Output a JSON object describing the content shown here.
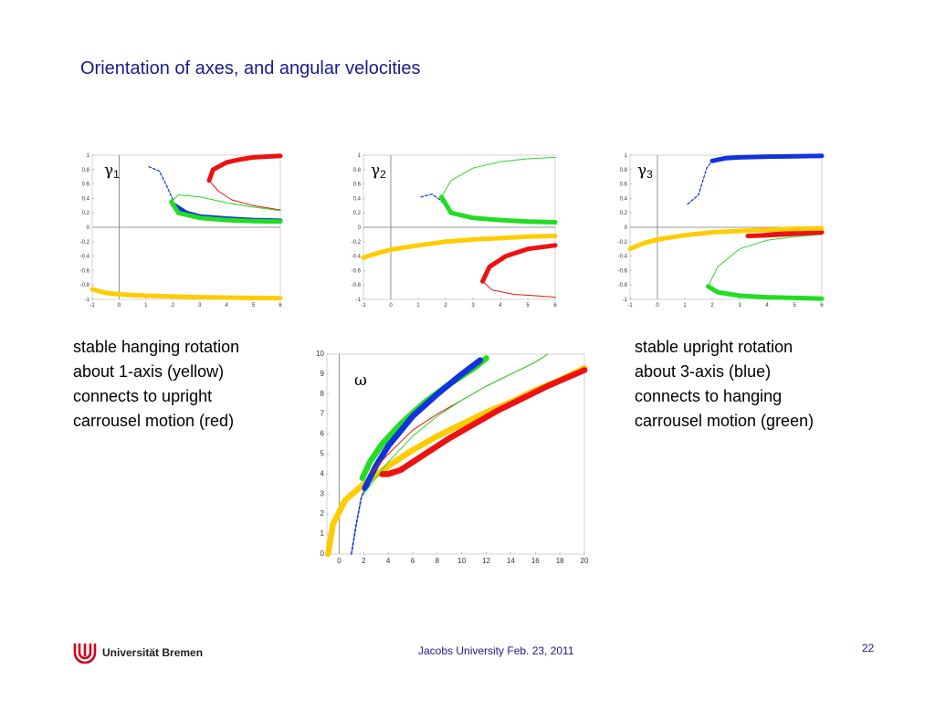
{
  "slide": {
    "title": "Orientation of axes, and angular velocities",
    "caption_left": [
      "stable hanging rotation",
      "about 1-axis (yellow)",
      "connects to upright",
      "carrousel motion (red)"
    ],
    "caption_right": [
      "stable upright rotation",
      "about 3-axis (blue)",
      "connects to hanging",
      "carrousel motion (green)"
    ],
    "footer": "Jacobs University Feb. 23, 2011",
    "page_number": "22",
    "logo_text": "Universität Bremen"
  },
  "colors": {
    "red": "#ee1111",
    "blue": "#1133dd",
    "green": "#22dd22",
    "yellow": "#ffcc00",
    "title": "#1a1a8c"
  },
  "chart_data": [
    {
      "type": "line",
      "label": "γ1",
      "label_symbol": "γ",
      "label_sub": "1",
      "xlim": [
        -1,
        6
      ],
      "ylim": [
        -1,
        1
      ],
      "xticks": [
        -1,
        0,
        1,
        2,
        3,
        4,
        5,
        6
      ],
      "yticks": [
        1,
        0.8,
        0.6,
        0.4,
        0.2,
        0,
        -0.2,
        -0.4,
        -0.6,
        -0.8,
        -1
      ],
      "series": [
        {
          "color": "red",
          "style": "thick",
          "points": [
            [
              3.35,
              0.65
            ],
            [
              3.5,
              0.8
            ],
            [
              4,
              0.9
            ],
            [
              4.5,
              0.94
            ],
            [
              5,
              0.97
            ],
            [
              6,
              0.99
            ]
          ]
        },
        {
          "color": "red",
          "style": "thin",
          "points": [
            [
              3.35,
              0.65
            ],
            [
              3.7,
              0.5
            ],
            [
              4.2,
              0.38
            ],
            [
              5,
              0.3
            ],
            [
              6,
              0.24
            ]
          ]
        },
        {
          "color": "blue",
          "style": "dashed",
          "points": [
            [
              1.1,
              0.84
            ],
            [
              1.5,
              0.78
            ],
            [
              1.8,
              0.55
            ],
            [
              2,
              0.38
            ]
          ]
        },
        {
          "color": "blue",
          "style": "thick",
          "points": [
            [
              2,
              0.32
            ],
            [
              2.5,
              0.2
            ],
            [
              3,
              0.15
            ],
            [
              4,
              0.12
            ],
            [
              5,
              0.1
            ],
            [
              6,
              0.09
            ]
          ]
        },
        {
          "color": "green",
          "style": "thick",
          "points": [
            [
              1.95,
              0.35
            ],
            [
              2.2,
              0.2
            ],
            [
              3,
              0.13
            ],
            [
              4,
              0.1
            ],
            [
              5,
              0.085
            ],
            [
              6,
              0.08
            ]
          ]
        },
        {
          "color": "green",
          "style": "thin",
          "points": [
            [
              1.95,
              0.35
            ],
            [
              2.2,
              0.45
            ],
            [
              3,
              0.42
            ],
            [
              4,
              0.34
            ],
            [
              5,
              0.28
            ],
            [
              6,
              0.23
            ]
          ]
        },
        {
          "color": "yellow",
          "style": "thick",
          "points": [
            [
              -1,
              -0.86
            ],
            [
              -0.5,
              -0.91
            ],
            [
              0,
              -0.93
            ],
            [
              1,
              -0.95
            ],
            [
              2,
              -0.96
            ],
            [
              3,
              -0.97
            ],
            [
              4,
              -0.975
            ],
            [
              5,
              -0.98
            ],
            [
              6,
              -0.985
            ]
          ]
        }
      ]
    },
    {
      "type": "line",
      "label": "γ2",
      "label_symbol": "γ",
      "label_sub": "2",
      "xlim": [
        -1,
        6
      ],
      "ylim": [
        -1,
        1
      ],
      "xticks": [
        -1,
        0,
        1,
        2,
        3,
        4,
        5,
        6
      ],
      "yticks": [
        1,
        0.8,
        0.6,
        0.4,
        0.2,
        0,
        -0.2,
        -0.4,
        -0.6,
        -0.8,
        -1
      ],
      "series": [
        {
          "color": "blue",
          "style": "dashed",
          "points": [
            [
              1.1,
              0.42
            ],
            [
              1.5,
              0.46
            ],
            [
              1.8,
              0.38
            ],
            [
              2,
              0.3
            ]
          ]
        },
        {
          "color": "green",
          "style": "thin",
          "points": [
            [
              1.85,
              0.42
            ],
            [
              2.2,
              0.65
            ],
            [
              3,
              0.82
            ],
            [
              4,
              0.91
            ],
            [
              5,
              0.95
            ],
            [
              6,
              0.97
            ]
          ]
        },
        {
          "color": "green",
          "style": "thick",
          "points": [
            [
              1.85,
              0.42
            ],
            [
              2.2,
              0.2
            ],
            [
              3,
              0.13
            ],
            [
              4,
              0.1
            ],
            [
              5,
              0.08
            ],
            [
              6,
              0.07
            ]
          ]
        },
        {
          "color": "red",
          "style": "thick",
          "points": [
            [
              3.35,
              -0.75
            ],
            [
              3.6,
              -0.55
            ],
            [
              4.2,
              -0.4
            ],
            [
              5,
              -0.3
            ],
            [
              6,
              -0.25
            ]
          ]
        },
        {
          "color": "red",
          "style": "thin",
          "points": [
            [
              3.35,
              -0.75
            ],
            [
              3.7,
              -0.87
            ],
            [
              4.5,
              -0.93
            ],
            [
              5.3,
              -0.95
            ],
            [
              6,
              -0.97
            ]
          ]
        },
        {
          "color": "yellow",
          "style": "thick",
          "points": [
            [
              -1,
              -0.42
            ],
            [
              -0.5,
              -0.36
            ],
            [
              0,
              -0.31
            ],
            [
              1,
              -0.25
            ],
            [
              2,
              -0.2
            ],
            [
              3,
              -0.17
            ],
            [
              4,
              -0.15
            ],
            [
              5,
              -0.13
            ],
            [
              6,
              -0.12
            ]
          ]
        }
      ]
    },
    {
      "type": "line",
      "label": "γ3",
      "label_symbol": "γ",
      "label_sub": "3",
      "xlim": [
        -1,
        6
      ],
      "ylim": [
        -1,
        1
      ],
      "xticks": [
        -1,
        0,
        1,
        2,
        3,
        4,
        5,
        6
      ],
      "yticks": [
        1,
        0.8,
        0.6,
        0.4,
        0.2,
        0,
        -0.2,
        -0.4,
        -0.6,
        -0.8,
        -1
      ],
      "series": [
        {
          "color": "blue",
          "style": "dashed",
          "points": [
            [
              1.1,
              0.32
            ],
            [
              1.5,
              0.45
            ],
            [
              1.8,
              0.82
            ],
            [
              2,
              0.92
            ]
          ]
        },
        {
          "color": "blue",
          "style": "thick",
          "points": [
            [
              2,
              0.92
            ],
            [
              2.5,
              0.96
            ],
            [
              3,
              0.97
            ],
            [
              4,
              0.98
            ],
            [
              5,
              0.985
            ],
            [
              6,
              0.99
            ]
          ]
        },
        {
          "color": "green",
          "style": "thin",
          "points": [
            [
              1.85,
              -0.82
            ],
            [
              2.2,
              -0.55
            ],
            [
              3,
              -0.3
            ],
            [
              4,
              -0.18
            ],
            [
              5,
              -0.13
            ],
            [
              6,
              -0.1
            ]
          ]
        },
        {
          "color": "green",
          "style": "thick",
          "points": [
            [
              1.85,
              -0.82
            ],
            [
              2.2,
              -0.9
            ],
            [
              3,
              -0.95
            ],
            [
              4,
              -0.97
            ],
            [
              5,
              -0.98
            ],
            [
              6,
              -0.99
            ]
          ]
        },
        {
          "color": "red",
          "style": "thick",
          "points": [
            [
              3.3,
              -0.12
            ],
            [
              4,
              -0.11
            ],
            [
              5,
              -0.09
            ],
            [
              6,
              -0.07
            ]
          ]
        },
        {
          "color": "red",
          "style": "thin",
          "points": [
            [
              3.3,
              -0.12
            ],
            [
              4,
              -0.08
            ],
            [
              5,
              -0.05
            ],
            [
              6,
              -0.03
            ]
          ]
        },
        {
          "color": "yellow",
          "style": "thick",
          "points": [
            [
              -1,
              -0.3
            ],
            [
              -0.5,
              -0.22
            ],
            [
              0,
              -0.17
            ],
            [
              1,
              -0.11
            ],
            [
              2,
              -0.07
            ],
            [
              3,
              -0.05
            ],
            [
              4,
              -0.035
            ],
            [
              5,
              -0.02
            ],
            [
              6,
              -0.015
            ]
          ]
        }
      ]
    },
    {
      "type": "line",
      "label": "ω",
      "label_symbol": "ω",
      "label_sub": "",
      "xlim": [
        -1,
        20
      ],
      "ylim": [
        0,
        10
      ],
      "xticks": [
        0,
        2,
        4,
        6,
        8,
        10,
        12,
        14,
        16,
        18,
        20
      ],
      "yticks": [
        10,
        9,
        8,
        7,
        6,
        5,
        4,
        3,
        2,
        1,
        0
      ],
      "series": [
        {
          "color": "yellow",
          "style": "thick",
          "points": [
            [
              -0.9,
              0
            ],
            [
              -0.5,
              1.5
            ],
            [
              0.5,
              2.7
            ],
            [
              2,
              3.5
            ],
            [
              4,
              4.4
            ],
            [
              6,
              5.2
            ],
            [
              8,
              5.9
            ],
            [
              10,
              6.5
            ],
            [
              12,
              7.1
            ],
            [
              14,
              7.6
            ],
            [
              16,
              8.2
            ],
            [
              18,
              8.7
            ],
            [
              20,
              9.3
            ]
          ]
        },
        {
          "color": "green",
          "style": "thick",
          "points": [
            [
              1.9,
              3.8
            ],
            [
              2.5,
              4.6
            ],
            [
              3.5,
              5.5
            ],
            [
              5,
              6.5
            ],
            [
              7,
              7.6
            ],
            [
              9,
              8.5
            ],
            [
              11,
              9.3
            ],
            [
              12,
              9.8
            ]
          ]
        },
        {
          "color": "blue",
          "style": "thick",
          "points": [
            [
              2.1,
              3.3
            ],
            [
              3,
              4.4
            ],
            [
              4,
              5.4
            ],
            [
              6,
              6.9
            ],
            [
              8,
              8.0
            ],
            [
              10,
              9.0
            ],
            [
              11.5,
              9.7
            ]
          ]
        },
        {
          "color": "blue",
          "style": "dashed",
          "points": [
            [
              1,
              0
            ],
            [
              1.4,
              1.5
            ],
            [
              1.8,
              2.8
            ],
            [
              2.1,
              3.3
            ]
          ]
        },
        {
          "color": "red",
          "style": "thick",
          "points": [
            [
              3.5,
              4.0
            ],
            [
              4,
              4.0
            ],
            [
              5,
              4.2
            ],
            [
              7,
              5.0
            ],
            [
              9,
              5.8
            ],
            [
              11,
              6.5
            ],
            [
              13,
              7.2
            ],
            [
              15,
              7.8
            ],
            [
              17,
              8.4
            ],
            [
              20,
              9.2
            ]
          ]
        },
        {
          "color": "red",
          "style": "thin",
          "points": [
            [
              2.5,
              4.0
            ],
            [
              4,
              5.0
            ],
            [
              6,
              6.2
            ],
            [
              8,
              7.0
            ],
            [
              10,
              7.7
            ],
            [
              12,
              8.4
            ],
            [
              14,
              9.0
            ],
            [
              16,
              9.6
            ],
            [
              17,
              10
            ]
          ]
        },
        {
          "color": "green",
          "style": "thin",
          "points": [
            [
              2,
              3.0
            ],
            [
              4,
              4.6
            ],
            [
              6,
              5.9
            ],
            [
              8,
              6.9
            ],
            [
              10,
              7.7
            ],
            [
              12,
              8.4
            ],
            [
              14,
              9.0
            ],
            [
              16,
              9.6
            ],
            [
              17,
              10
            ]
          ]
        }
      ]
    }
  ]
}
